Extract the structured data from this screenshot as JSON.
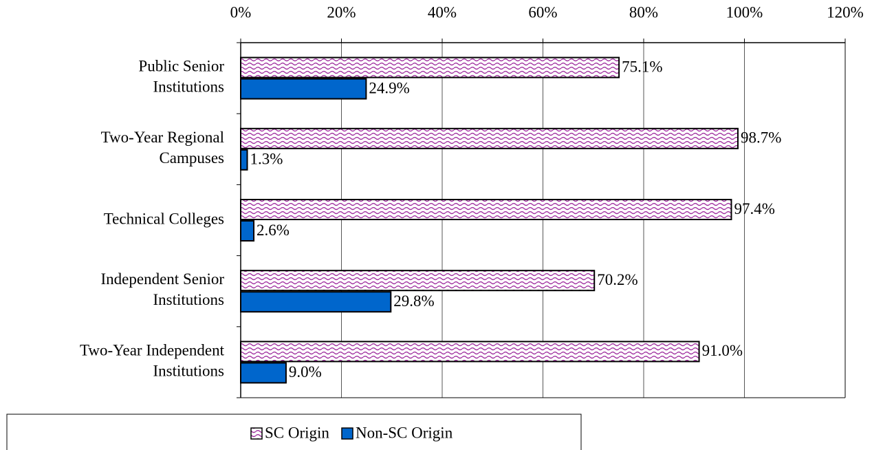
{
  "chart_data": {
    "type": "hbar",
    "categories": [
      "Public Senior\nInstitutions",
      "Two-Year Regional\nCampuses",
      "Technical Colleges",
      "Independent Senior\nInstitutions",
      "Two-Year Independent\nInstitutions"
    ],
    "series": [
      {
        "name": "SC Origin",
        "color": "#a030a0",
        "pattern": "wave",
        "values": [
          75.1,
          98.7,
          97.4,
          70.2,
          91.0
        ],
        "value_labels": [
          "75.1%",
          "98.7%",
          "97.4%",
          "70.2%",
          "91.0%"
        ]
      },
      {
        "name": "Non-SC Origin",
        "color": "#0066cc",
        "values": [
          24.9,
          1.3,
          2.6,
          29.8,
          9.0
        ],
        "value_labels": [
          "24.9%",
          "1.3%",
          "2.6%",
          "29.8%",
          "9.0%"
        ]
      }
    ],
    "xlim": [
      0,
      120
    ],
    "xticks": [
      {
        "value": 0,
        "label": "0%"
      },
      {
        "value": 20,
        "label": "20%"
      },
      {
        "value": 40,
        "label": "40%"
      },
      {
        "value": 60,
        "label": "60%"
      },
      {
        "value": 80,
        "label": "80%"
      },
      {
        "value": 100,
        "label": "100%"
      },
      {
        "value": 120,
        "label": "120%"
      }
    ],
    "grid": true,
    "legend": "bottom"
  }
}
